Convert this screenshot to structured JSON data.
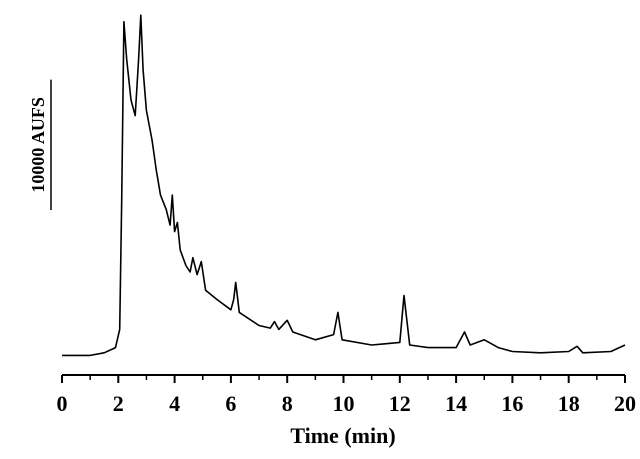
{
  "chart_data": {
    "type": "line",
    "x_label": "Time (min)",
    "scale_bar": {
      "value": 10000,
      "label": "10000 AUFS"
    },
    "xlim": [
      0,
      20
    ],
    "xticks": [
      0,
      2,
      4,
      6,
      8,
      10,
      12,
      14,
      16,
      18,
      20
    ],
    "xminor_ticks": [
      1,
      3,
      5,
      7,
      9,
      11,
      13,
      15,
      17,
      19
    ],
    "ylim": [
      0,
      28000
    ],
    "color": "#000000",
    "x": [
      0,
      0.5,
      1.0,
      1.5,
      1.9,
      2.05,
      2.12,
      2.2,
      2.3,
      2.45,
      2.6,
      2.72,
      2.8,
      2.88,
      3.0,
      3.2,
      3.35,
      3.5,
      3.7,
      3.84,
      3.92,
      4.0,
      4.1,
      4.2,
      4.4,
      4.55,
      4.65,
      4.8,
      4.95,
      5.1,
      5.5,
      6.0,
      6.1,
      6.17,
      6.3,
      7.0,
      7.4,
      7.55,
      7.7,
      8.0,
      8.2,
      9.0,
      9.65,
      9.8,
      9.95,
      11.0,
      12.0,
      12.15,
      12.35,
      13.0,
      14.0,
      14.3,
      14.5,
      15.0,
      15.5,
      16.0,
      17.0,
      18.0,
      18.3,
      18.5,
      19.5,
      20.0
    ],
    "values": [
      1500,
      1500,
      1500,
      1700,
      2100,
      3500,
      13400,
      27100,
      24200,
      21100,
      19900,
      24200,
      27600,
      23400,
      20300,
      18000,
      15700,
      13800,
      12700,
      11500,
      13800,
      11000,
      11700,
      9600,
      8400,
      7900,
      9000,
      7700,
      8700,
      6500,
      5800,
      5000,
      5800,
      7100,
      4800,
      3800,
      3600,
      4100,
      3500,
      4200,
      3300,
      2700,
      3100,
      4800,
      2700,
      2300,
      2500,
      6100,
      2300,
      2100,
      2100,
      3300,
      2300,
      2700,
      2100,
      1800,
      1700,
      1800,
      2200,
      1700,
      1800,
      2300
    ]
  }
}
